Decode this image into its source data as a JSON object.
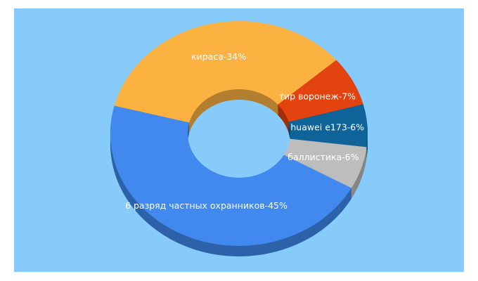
{
  "chart_data": {
    "type": "donut3d",
    "value_labels": [
      "6 разряд частных охранников-45%",
      "кираса-34%",
      "тир воронеж-7%",
      "huawei e173-6%",
      "баллистика-6%"
    ],
    "values": [
      45,
      34,
      7,
      6,
      6
    ],
    "colors": [
      "#4189ee",
      "#fbb240",
      "#e2430f",
      "#0e6399",
      "#bdbdbd"
    ],
    "side_colors": [
      "#2d62a9",
      "#b37f2e",
      "#a02f0a",
      "#0a466c",
      "#868686"
    ]
  }
}
